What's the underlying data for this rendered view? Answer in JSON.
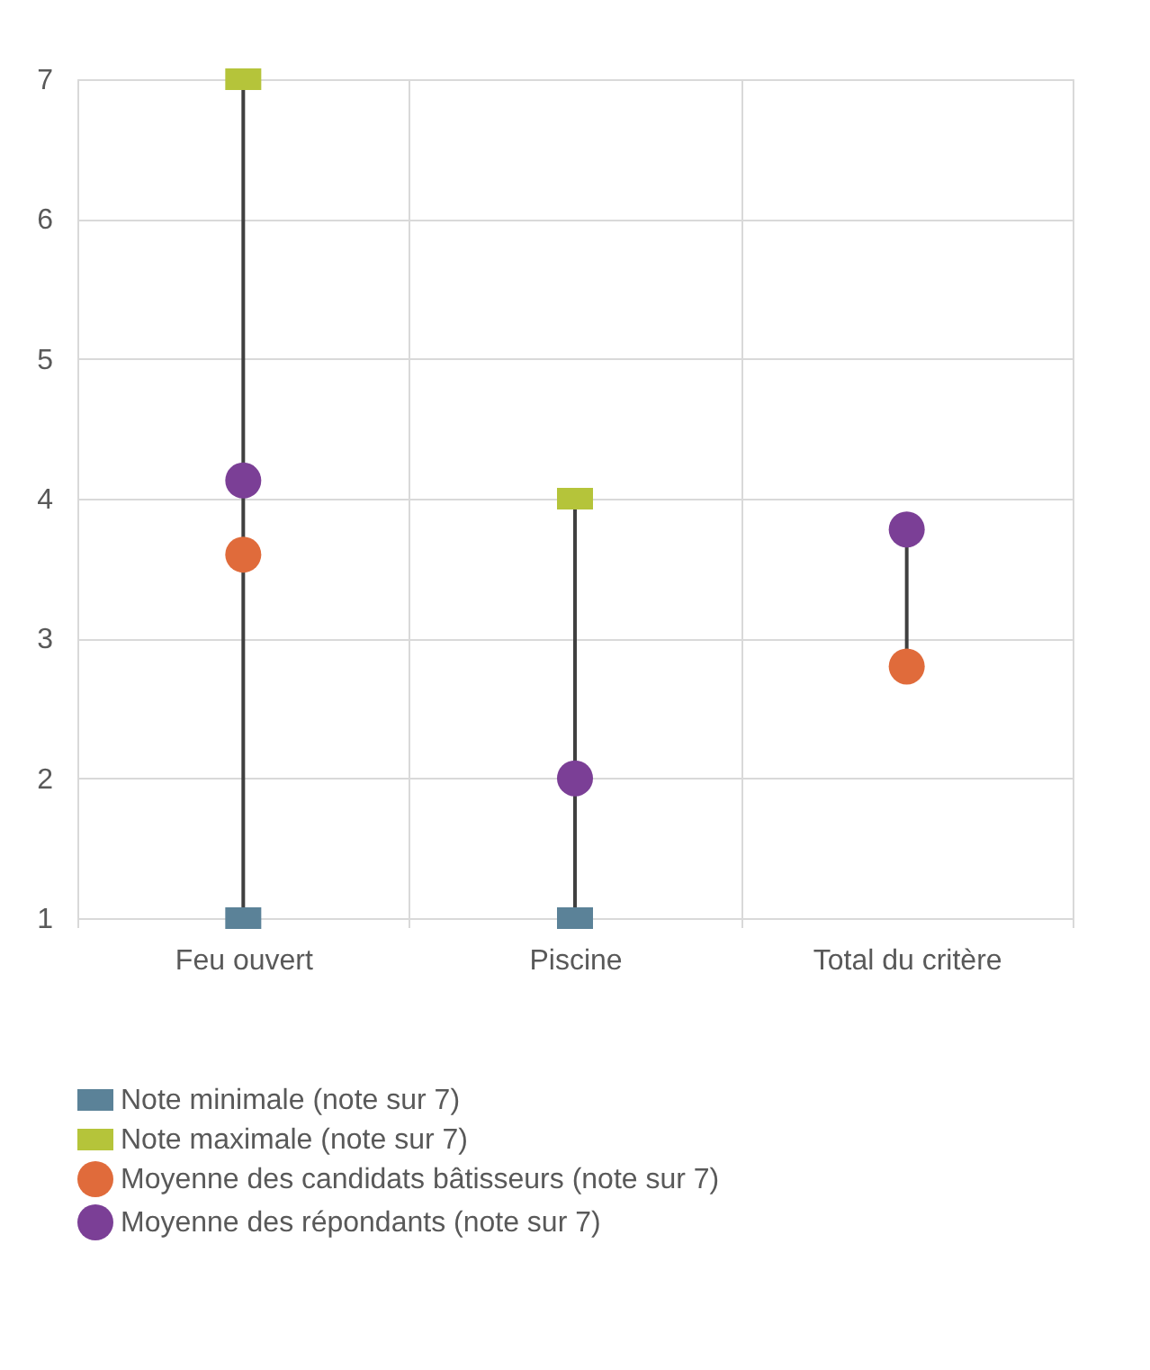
{
  "chart_data": {
    "type": "scatter",
    "categories": [
      "Feu ouvert",
      "Piscine",
      "Total du critère"
    ],
    "series": [
      {
        "name": "Note minimale (note sur 7)",
        "color": "#5b8298",
        "marker": "square",
        "values": [
          1,
          1,
          null
        ]
      },
      {
        "name": "Note maximale (note sur 7)",
        "color": "#b5c43a",
        "marker": "square",
        "values": [
          7,
          4,
          null
        ]
      },
      {
        "name": "Moyenne des candidats bâtisseurs (note sur 7)",
        "color": "#e06b3b",
        "marker": "circle",
        "values": [
          3.6,
          null,
          2.8
        ]
      },
      {
        "name": "Moyenne des répondants (note sur 7)",
        "color": "#7b3f96",
        "marker": "circle",
        "values": [
          4.13,
          2.0,
          3.78
        ]
      }
    ],
    "ylim": [
      1,
      7
    ],
    "yticks": [
      1,
      2,
      3,
      4,
      5,
      6,
      7
    ],
    "grid": true,
    "legend": "bottom"
  }
}
